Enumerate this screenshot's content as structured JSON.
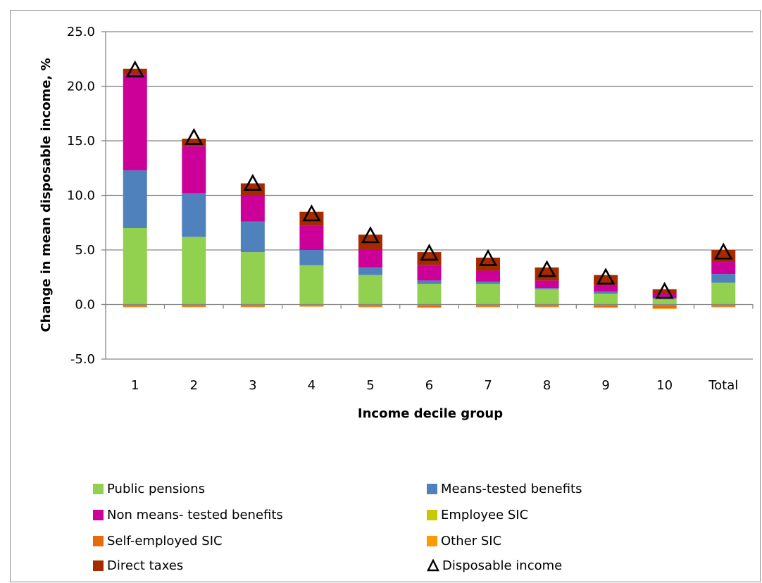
{
  "chart_data": {
    "type": "bar",
    "stacked": true,
    "categories": [
      "1",
      "2",
      "3",
      "4",
      "5",
      "6",
      "7",
      "8",
      "9",
      "10",
      "Total"
    ],
    "xlabel": "Income decile group",
    "ylabel": "Change in mean disposable income, %",
    "ylim": [
      -5.0,
      25.0
    ],
    "yticks": [
      "-5.0",
      "0.0",
      "5.0",
      "10.0",
      "15.0",
      "20.0",
      "25.0"
    ],
    "grid": true,
    "legend_position": "bottom",
    "series": [
      {
        "name": "Public pensions",
        "color": "#92d050",
        "values": [
          7.0,
          6.2,
          4.8,
          3.6,
          2.7,
          1.9,
          1.9,
          1.4,
          1.0,
          0.5,
          2.0
        ]
      },
      {
        "name": "Means-tested benefits",
        "color": "#4f81bd",
        "values": [
          5.3,
          4.0,
          2.8,
          1.4,
          0.7,
          0.3,
          0.2,
          0.1,
          0.2,
          0.1,
          0.8
        ]
      },
      {
        "name": "Non means- tested benefits",
        "color": "#cc0099",
        "values": [
          8.8,
          4.3,
          2.4,
          2.2,
          1.6,
          1.4,
          1.0,
          0.7,
          0.6,
          0.4,
          1.1
        ]
      },
      {
        "name": "Employee SIC",
        "color": "#c8c800",
        "values": [
          -0.05,
          -0.05,
          -0.05,
          -0.05,
          -0.05,
          -0.05,
          -0.05,
          -0.05,
          -0.05,
          -0.05,
          -0.05
        ]
      },
      {
        "name": "Self-employed SIC",
        "color": "#e46c0a",
        "values": [
          -0.15,
          -0.15,
          -0.15,
          -0.1,
          -0.15,
          -0.2,
          -0.15,
          -0.15,
          -0.2,
          -0.3,
          -0.15
        ]
      },
      {
        "name": "Other SIC",
        "color": "#ff9900",
        "values": [
          -0.05,
          -0.05,
          -0.05,
          -0.05,
          -0.05,
          -0.05,
          -0.05,
          -0.05,
          -0.05,
          -0.05,
          -0.05
        ]
      },
      {
        "name": "Direct taxes",
        "color": "#a52a00",
        "values": [
          0.5,
          0.7,
          1.1,
          1.3,
          1.4,
          1.2,
          1.2,
          1.2,
          0.9,
          0.4,
          1.1
        ]
      }
    ],
    "line_series": {
      "name": "Disposable income",
      "marker": "triangle",
      "values": [
        21.4,
        15.2,
        11.0,
        8.2,
        6.2,
        4.6,
        4.1,
        3.1,
        2.4,
        1.1,
        4.7
      ]
    }
  },
  "legend": {
    "items": [
      {
        "label": "Public pensions",
        "color": "#92d050",
        "kind": "swatch"
      },
      {
        "label": "Means-tested benefits",
        "color": "#4f81bd",
        "kind": "swatch"
      },
      {
        "label": "Non means- tested benefits",
        "color": "#cc0099",
        "kind": "swatch"
      },
      {
        "label": "Employee SIC",
        "color": "#c8c800",
        "kind": "swatch"
      },
      {
        "label": "Self-employed SIC",
        "color": "#e46c0a",
        "kind": "swatch"
      },
      {
        "label": "Other SIC",
        "color": "#ff9900",
        "kind": "swatch"
      },
      {
        "label": "Direct taxes",
        "color": "#a52a00",
        "kind": "swatch"
      },
      {
        "label": "Disposable income",
        "color": "#000000",
        "kind": "triangle-marker"
      }
    ]
  }
}
